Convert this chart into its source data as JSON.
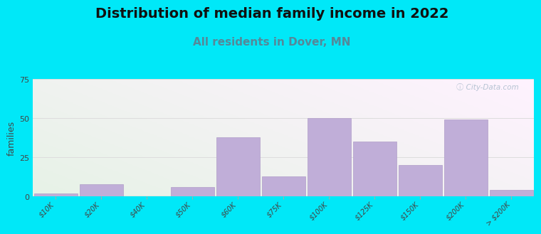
{
  "title": "Distribution of median family income in 2022",
  "subtitle": "All residents in Dover, MN",
  "ylabel": "families",
  "categories": [
    "$10K",
    "$20K",
    "$40K",
    "$50K",
    "$60K",
    "$75K",
    "$100K",
    "$125K",
    "$150K",
    "$200K",
    "> $200K"
  ],
  "values": [
    2,
    8,
    0,
    6,
    38,
    13,
    50,
    35,
    20,
    49,
    4
  ],
  "bar_color": "#c0aed8",
  "bar_edge_color": "#b09ec8",
  "bg_outer": "#00e8f8",
  "ylim": [
    0,
    75
  ],
  "yticks": [
    0,
    25,
    50,
    75
  ],
  "title_fontsize": 14,
  "subtitle_fontsize": 11,
  "subtitle_color": "#558899",
  "ylabel_fontsize": 9,
  "watermark": "ⓘ City-Data.com",
  "grid_color": "#dddddd",
  "bg_left_color": "#c8eec0",
  "bg_right_color": "#eef4ee"
}
